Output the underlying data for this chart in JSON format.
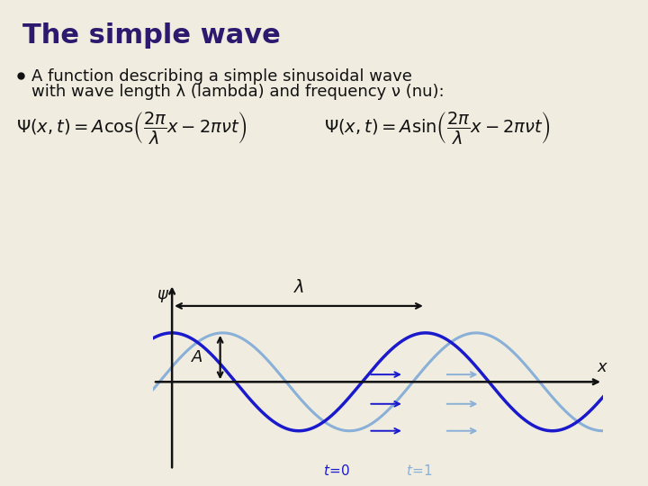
{
  "bg_color": "#f0ede0",
  "title": "The simple wave",
  "title_color": "#2d1a6e",
  "title_fontsize": 22,
  "bullet_text_line1": "A function describing a simple sinusoidal wave",
  "bullet_text_line2": "with wave length λ (lambda) and frequency ν (nu):",
  "bullet_fontsize": 13,
  "eq_fontsize": 13,
  "wave_color_dark": "#1a1acc",
  "wave_color_light": "#8ab0d8",
  "axis_color": "#111111",
  "arrow_color": "#111111"
}
